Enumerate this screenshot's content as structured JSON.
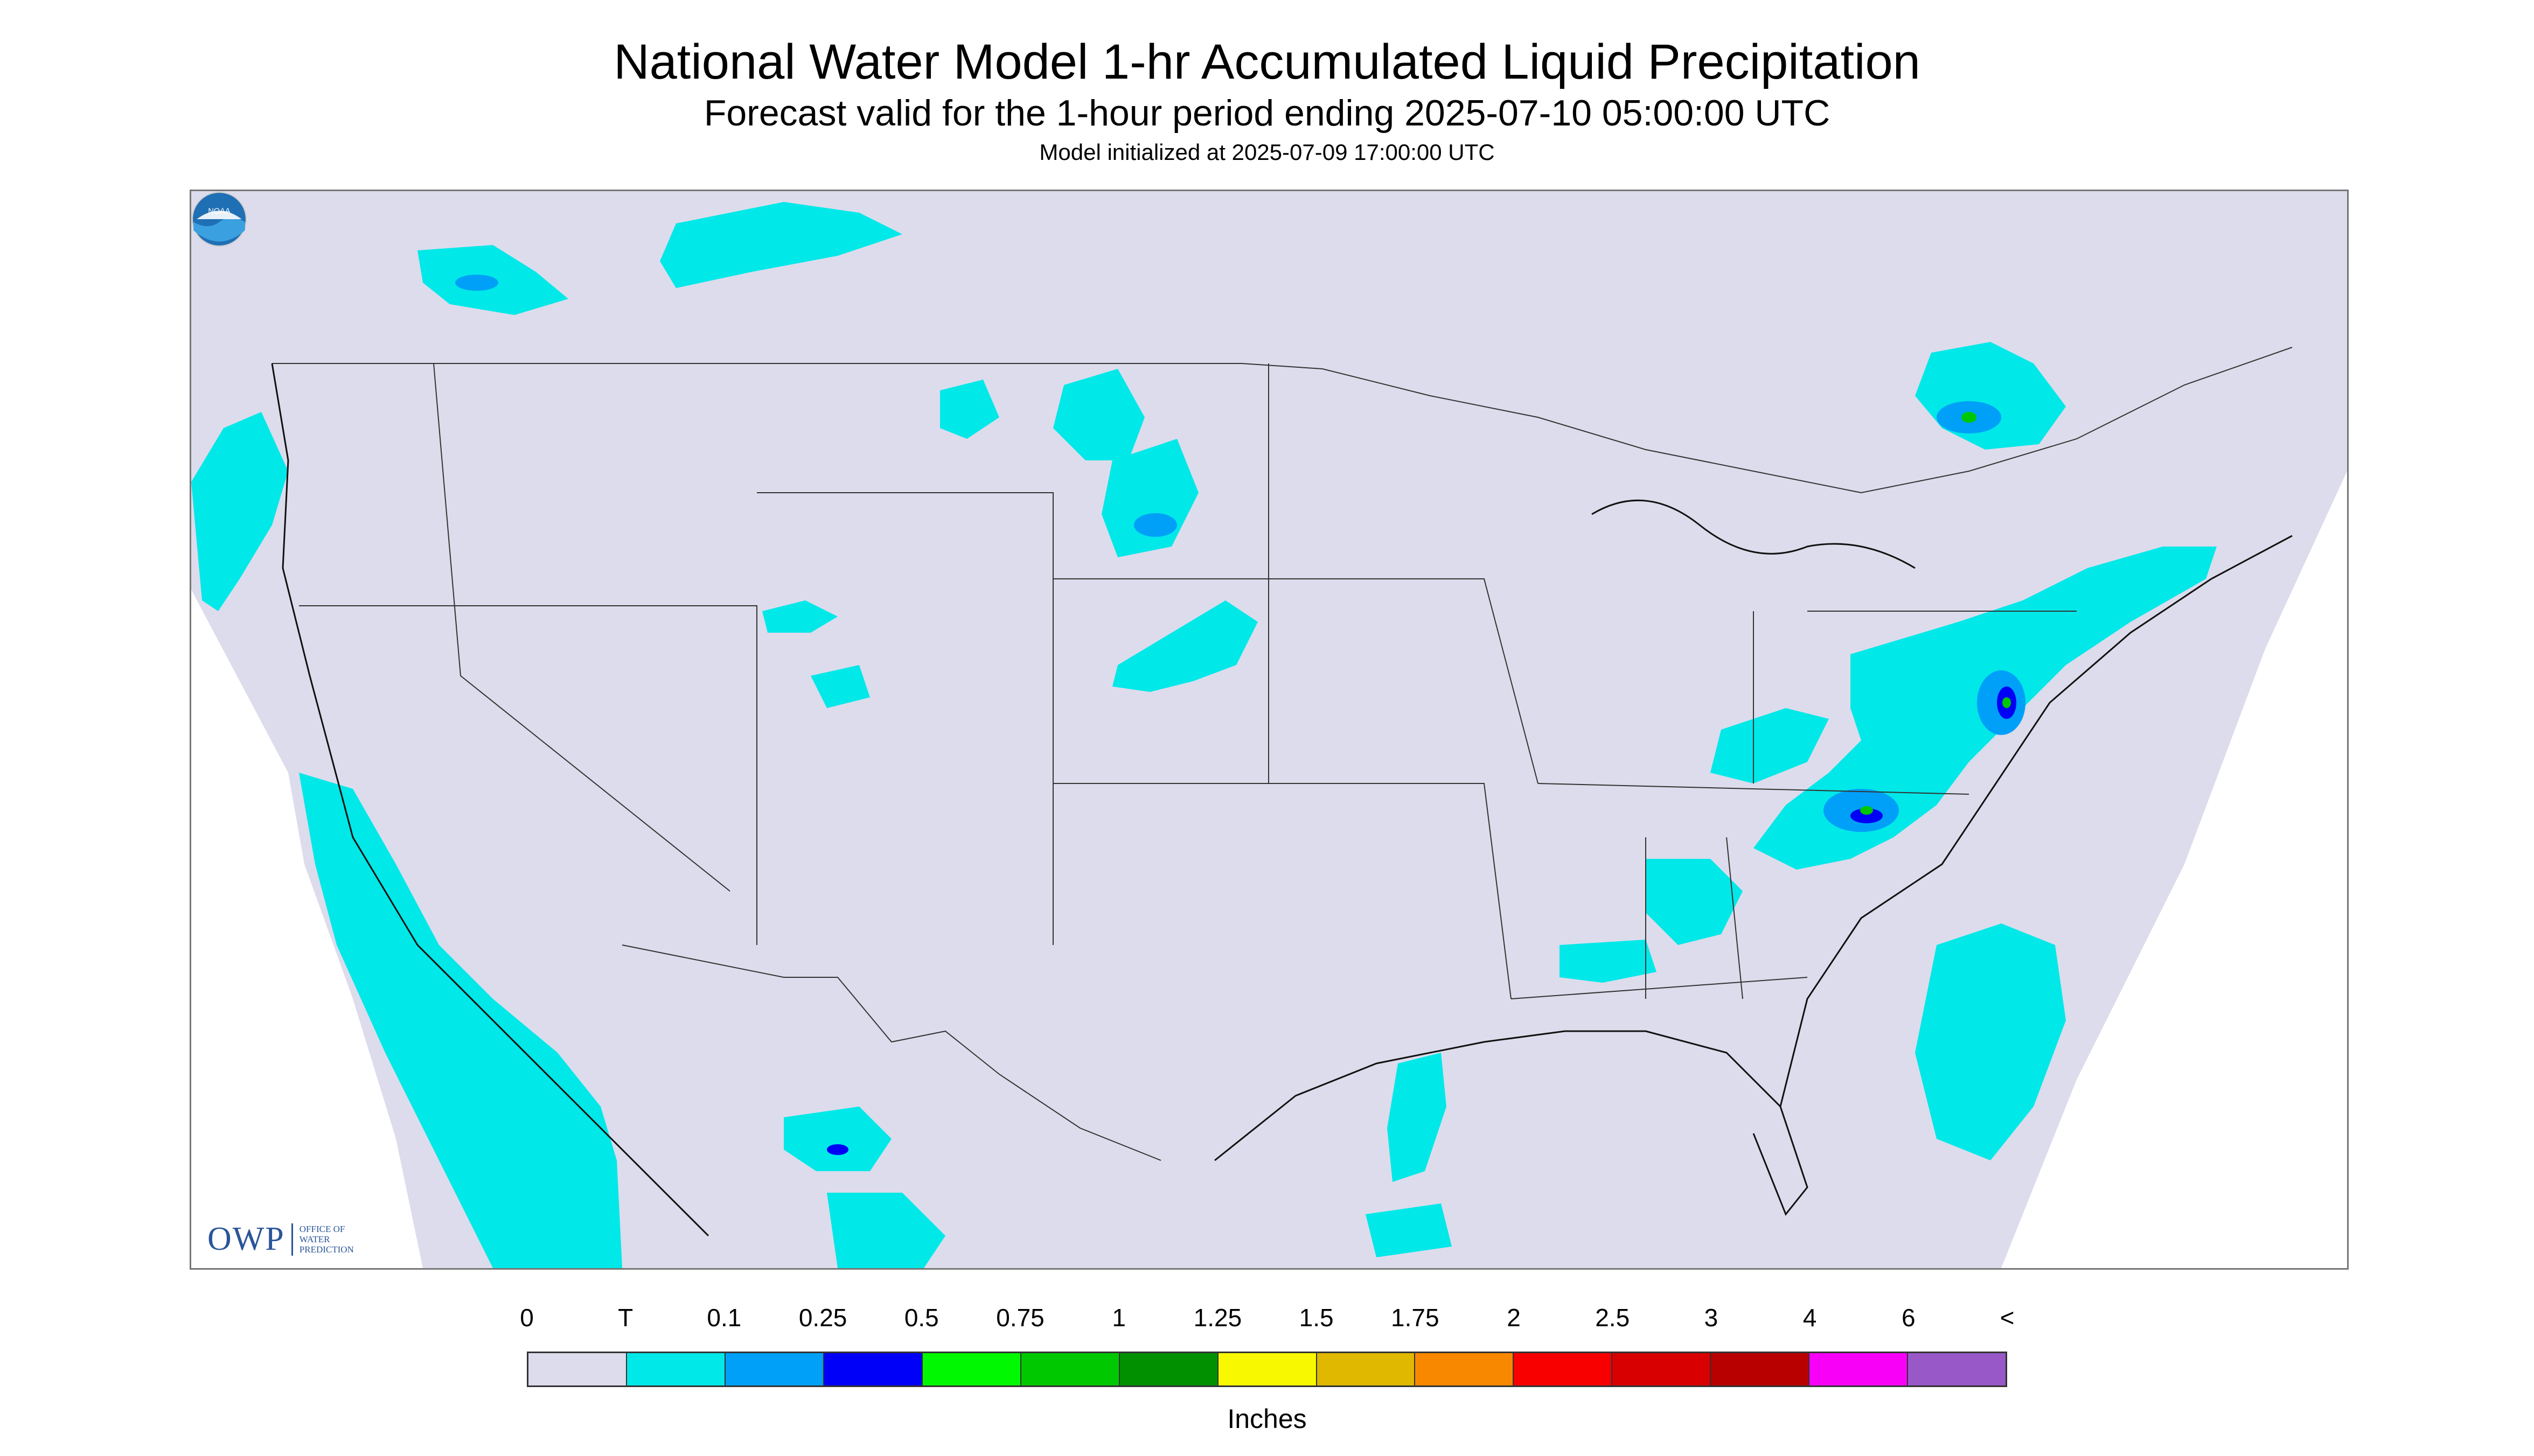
{
  "header": {
    "title": "National Water Model 1-hr Accumulated Liquid Precipitation",
    "subtitle": "Forecast valid for the 1-hour period ending 2025-07-10 05:00:00 UTC",
    "init": "Model initialized at 2025-07-09 17:00:00 UTC"
  },
  "logos": {
    "owp_main": "OWP",
    "owp_sub": [
      "OFFICE OF",
      "WATER",
      "PREDICTION"
    ],
    "noaa_text": "NOAA"
  },
  "legend": {
    "labels": [
      "0",
      "T",
      "0.1",
      "0.25",
      "0.5",
      "0.75",
      "1",
      "1.25",
      "1.5",
      "1.75",
      "2",
      "2.5",
      "3",
      "4",
      "6",
      "<"
    ],
    "colors": [
      "#dcdcec",
      "#00e8e8",
      "#00a0f8",
      "#0000f8",
      "#00f800",
      "#00c800",
      "#009000",
      "#f8f800",
      "#e0b800",
      "#f88800",
      "#f80000",
      "#d80000",
      "#b80000",
      "#f800f8",
      "#9858c8"
    ],
    "units": "Inches"
  },
  "colors": {
    "background": "#dcdcec",
    "trace": "#00e8e8",
    "light": "#00a0f8",
    "moderate": "#0000f8",
    "heavy": "#00c800"
  }
}
